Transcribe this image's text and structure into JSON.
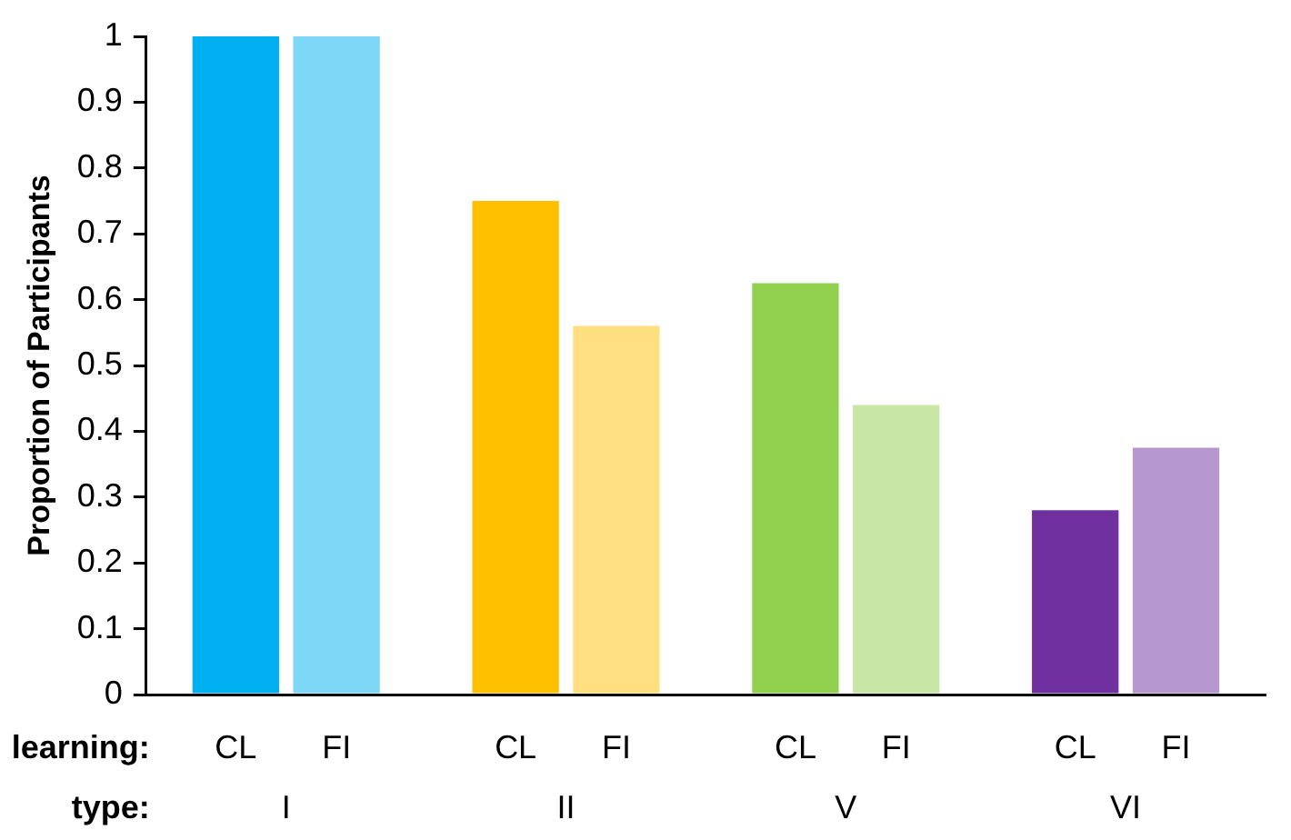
{
  "chart_data": {
    "type": "bar",
    "ylabel": "Proportion of Participants",
    "categories": [
      "I",
      "II",
      "V",
      "VI"
    ],
    "series": [
      {
        "name": "CL",
        "colors": [
          "#00b0f0",
          "#ffc000",
          "#92d050",
          "#7030a0"
        ],
        "values": [
          1,
          0.75,
          0.625,
          0.28
        ]
      },
      {
        "name": "FI",
        "colors": [
          "#00b0f0",
          "#ffc000",
          "#92d050",
          "#7030a0"
        ],
        "values": [
          1,
          0.56,
          0.44,
          0.375
        ]
      }
    ],
    "annotations": [
      "learning:",
      "type:"
    ],
    "ylim": [
      0,
      1
    ],
    "yticks": [
      0,
      0.1,
      0.2,
      0.3,
      0.4,
      0.5,
      0.6,
      0.7,
      0.8,
      0.9,
      1
    ],
    "grid": false,
    "legend": false
  }
}
